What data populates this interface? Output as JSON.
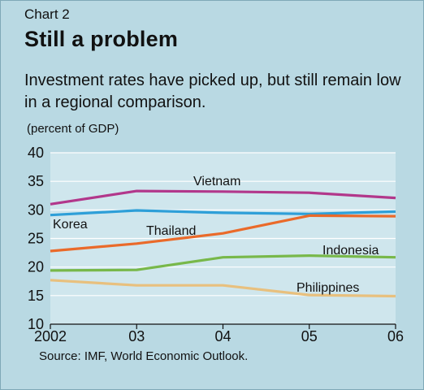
{
  "header": {
    "chart_number": "Chart 2",
    "title": "Still a problem",
    "subtitle": "Investment rates have picked up, but still remain low in a regional comparison.",
    "unit": "(percent of GDP)"
  },
  "footer": {
    "source": "Source: IMF, World Economic Outlook."
  },
  "chart_data": {
    "type": "line",
    "title": "Still a problem",
    "subtitle": "Investment rates have picked up, but still remain low in a regional comparison.",
    "ylabel": "(percent of GDP)",
    "x": [
      "2002",
      "03",
      "04",
      "05",
      "06"
    ],
    "ylim": [
      10,
      40
    ],
    "yticks": [
      10,
      15,
      20,
      25,
      30,
      35,
      40
    ],
    "grid": true,
    "legend": "inline labels",
    "series": [
      {
        "name": "Vietnam",
        "color": "#b2378b",
        "values": [
          31.0,
          33.3,
          33.2,
          33.0,
          32.1
        ]
      },
      {
        "name": "Korea",
        "color": "#2e9fd8",
        "values": [
          29.1,
          29.9,
          29.5,
          29.3,
          29.7
        ]
      },
      {
        "name": "Thailand",
        "color": "#ea6a2a",
        "values": [
          22.8,
          24.1,
          25.9,
          29.0,
          28.9
        ]
      },
      {
        "name": "Indonesia",
        "color": "#78b84a",
        "values": [
          19.4,
          19.5,
          21.7,
          22.0,
          21.7
        ]
      },
      {
        "name": "Philippines",
        "color": "#e8c07e",
        "values": [
          17.7,
          16.8,
          16.8,
          15.1,
          14.9
        ]
      }
    ]
  }
}
